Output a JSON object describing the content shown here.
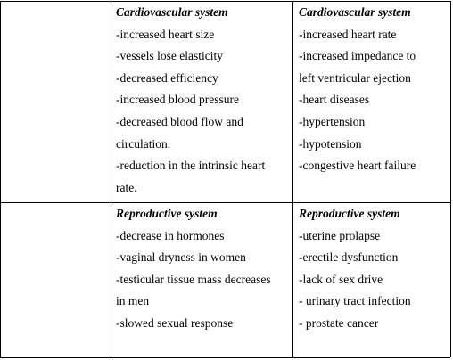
{
  "table": {
    "rows": [
      {
        "cells": [
          {
            "heading": "Cardiovascular system",
            "lines": [
              "-increased heart size",
              "-vessels lose elasticity",
              "-decreased efficiency",
              "-increased blood pressure",
              "-decreased blood flow and",
              "circulation.",
              "-reduction in the intrinsic heart",
              "rate."
            ]
          },
          {
            "heading": "Cardiovascular system",
            "lines": [
              "-increased heart rate",
              "-increased impedance to",
              "left ventricular ejection",
              "-heart diseases",
              "-hypertension",
              "-hypotension",
              "-congestive heart failure"
            ]
          }
        ]
      },
      {
        "cells": [
          {
            "heading": "Reproductive system",
            "lines": [
              "-decrease in hormones",
              "-vaginal dryness in women",
              "-testicular tissue mass decreases",
              "in men",
              "-slowed sexual response"
            ]
          },
          {
            "heading": "Reproductive system",
            "lines": [
              "-uterine prolapse",
              "-erectile dysfunction",
              "-lack of sex drive",
              "- urinary tract infection",
              "- prostate cancer"
            ]
          }
        ]
      }
    ]
  }
}
